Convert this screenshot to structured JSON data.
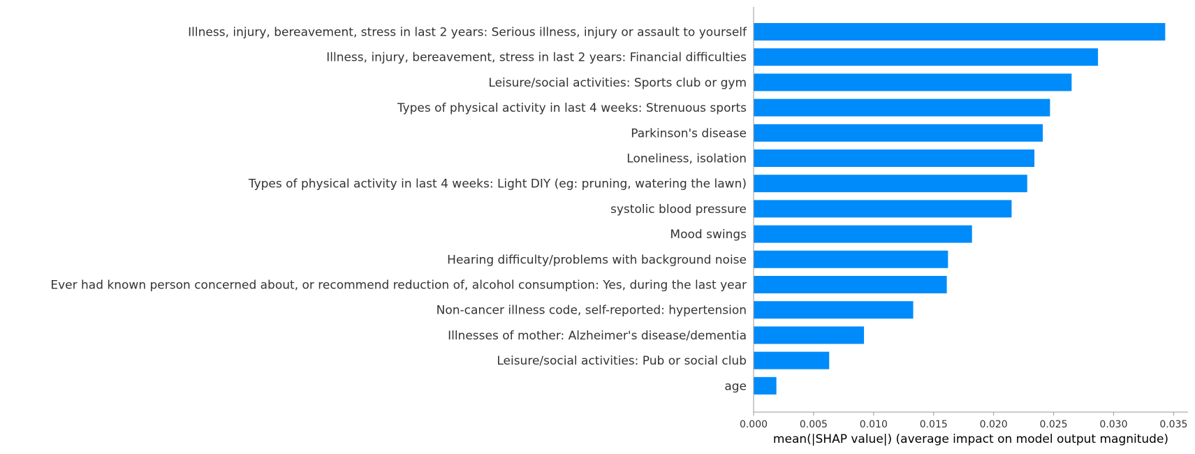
{
  "chart_data": {
    "type": "bar",
    "orientation": "horizontal",
    "categories": [
      "Illness, injury, bereavement, stress in last 2 years: Serious illness, injury or assault to yourself",
      "Illness, injury, bereavement, stress in last 2 years: Financial difficulties",
      "Leisure/social activities: Sports club or gym",
      "Types of physical activity in last 4 weeks: Strenuous sports",
      "Parkinson's disease",
      "Loneliness, isolation",
      "Types of physical activity in last 4 weeks: Light DIY (eg: pruning, watering the lawn)",
      "systolic blood pressure",
      "Mood swings",
      "Hearing difficulty/problems with background noise",
      "Ever had known person concerned about, or recommend reduction of, alcohol consumption: Yes, during the last year",
      "Non-cancer illness code, self-reported: hypertension",
      "Illnesses of mother: Alzheimer's disease/dementia",
      "Leisure/social activities: Pub or social club",
      "age"
    ],
    "values": [
      0.0343,
      0.0287,
      0.0265,
      0.0247,
      0.0241,
      0.0234,
      0.0228,
      0.0215,
      0.0182,
      0.0162,
      0.0161,
      0.0133,
      0.0092,
      0.0063,
      0.0019
    ],
    "xlabel": "mean(|SHAP value|) (average impact on model output magnitude)",
    "ylabel": "",
    "xlim": [
      0,
      0.0362
    ],
    "xticks": [
      0.0,
      0.005,
      0.01,
      0.015,
      0.02,
      0.025,
      0.03,
      0.035
    ],
    "xtick_labels": [
      "0.000",
      "0.005",
      "0.010",
      "0.015",
      "0.020",
      "0.025",
      "0.030",
      "0.035"
    ],
    "bar_color": "#008bfb",
    "grid": false,
    "legend": "none"
  }
}
